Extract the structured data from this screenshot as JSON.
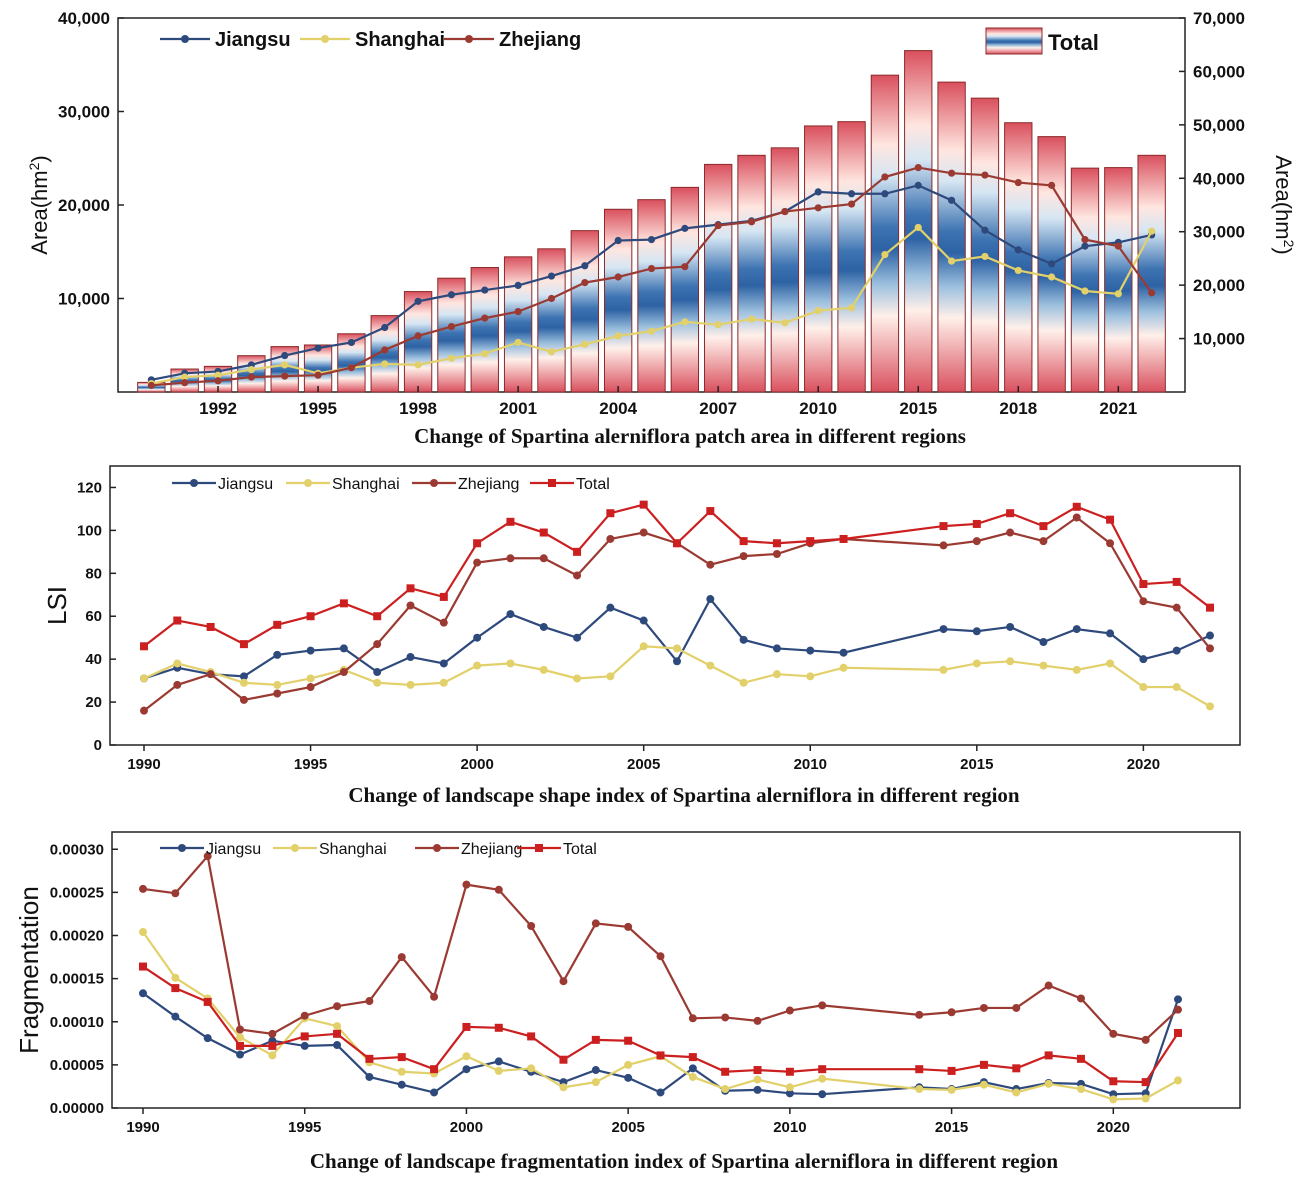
{
  "colors": {
    "jiangsu": "#2e4a7d",
    "shanghai": "#e2d06a",
    "zhejiang": "#9b3a32",
    "total": "#cc1f1f",
    "bar_edge": "#8b2a2a",
    "bar_red": "#d9505e",
    "bar_blue": "#2d62a4"
  },
  "chart_data": [
    {
      "type": "bar+line",
      "title": "Change of  Spartina alerniflora patch area in different regions",
      "ylabel": "Area(hm2)",
      "ylabel2": "Area(hm2)",
      "ylabel_prefix": "Area(hm",
      "ylabel_sup": "2",
      "ylabel_suffix": ")",
      "ylim": [
        0,
        40000
      ],
      "ylim2": [
        0,
        70000
      ],
      "yticks": [
        "10,000",
        "20,000",
        "30,000",
        "40,000"
      ],
      "y2ticks": [
        "10,000",
        "20,000",
        "30,000",
        "40,000",
        "50,000",
        "60,000",
        "70,000"
      ],
      "xtick_labels": [
        "1992",
        "1995",
        "1998",
        "2001",
        "2004",
        "2007",
        "2010",
        "2015",
        "2018",
        "2021"
      ],
      "bar_legend": "Total",
      "categories": [
        "1990",
        "1991",
        "1992",
        "1993",
        "1994",
        "1995",
        "1996",
        "1997",
        "1998",
        "1999",
        "2000",
        "2001",
        "2002",
        "2003",
        "2004",
        "2005",
        "2006",
        "2007",
        "2008",
        "2009",
        "2010",
        "2011",
        "2014",
        "2015",
        "2016",
        "2017",
        "2018",
        "2019",
        "2020",
        "2021",
        "2022"
      ],
      "bars": [
        1800,
        4300,
        4800,
        6800,
        8500,
        8800,
        10900,
        14300,
        18800,
        21300,
        23300,
        25300,
        26800,
        30200,
        34200,
        36000,
        38300,
        42600,
        44300,
        45700,
        49800,
        50600,
        59300,
        63900,
        58000,
        55000,
        50400,
        47800,
        41900,
        42000,
        44300
      ],
      "series": [
        {
          "name": "Jiangsu",
          "values": [
            1300,
            2000,
            2200,
            2900,
            3900,
            4700,
            5300,
            6900,
            9700,
            10400,
            10900,
            11400,
            12400,
            13500,
            16200,
            16300,
            17500,
            17900,
            18300,
            19300,
            21400,
            21200,
            21200,
            22100,
            20500,
            17300,
            15200,
            13700,
            15600,
            16000,
            16800
          ]
        },
        {
          "name": "Shanghai",
          "values": [
            900,
            1600,
            1800,
            2400,
            2900,
            2000,
            2600,
            3000,
            2900,
            3600,
            4100,
            5300,
            4300,
            5100,
            6000,
            6500,
            7500,
            7200,
            7800,
            7400,
            8700,
            9000,
            14700,
            17600,
            14000,
            14500,
            13000,
            12300,
            10800,
            10500,
            17200
          ]
        },
        {
          "name": "Zhejiang",
          "values": [
            700,
            1000,
            1200,
            1600,
            1700,
            1800,
            2600,
            4500,
            6000,
            7000,
            7900,
            8600,
            10000,
            11700,
            12300,
            13200,
            13400,
            17800,
            18200,
            19300,
            19700,
            20100,
            23000,
            24000,
            23400,
            23200,
            22400,
            22100,
            16300,
            15600,
            10600
          ]
        }
      ]
    },
    {
      "type": "line",
      "title": "Change of landscape shape index of Spartina alerniflora in different region",
      "ylabel": "LSI",
      "ylim": [
        0,
        130
      ],
      "yticks": [
        "0",
        "20",
        "40",
        "60",
        "80",
        "100",
        "120"
      ],
      "xtick_labels": [
        "1990",
        "1995",
        "2000",
        "2005",
        "2010",
        "2015",
        "2020"
      ],
      "x": [
        1990,
        1991,
        1992,
        1993,
        1994,
        1995,
        1996,
        1997,
        1998,
        1999,
        2000,
        2001,
        2002,
        2003,
        2004,
        2005,
        2006,
        2007,
        2008,
        2009,
        2010,
        2011,
        2014,
        2015,
        2016,
        2017,
        2018,
        2019,
        2020,
        2021,
        2022
      ],
      "series": [
        {
          "name": "Jiangsu",
          "values": [
            31,
            36,
            33,
            32,
            42,
            44,
            45,
            34,
            41,
            38,
            50,
            61,
            55,
            50,
            64,
            58,
            39,
            68,
            49,
            45,
            44,
            43,
            54,
            53,
            55,
            48,
            54,
            52,
            40,
            44,
            51
          ]
        },
        {
          "name": "Shanghai",
          "values": [
            31,
            38,
            34,
            29,
            28,
            31,
            35,
            29,
            28,
            29,
            37,
            38,
            35,
            31,
            32,
            46,
            45,
            37,
            29,
            33,
            32,
            36,
            35,
            38,
            39,
            37,
            35,
            38,
            27,
            27,
            18
          ]
        },
        {
          "name": "Zhejiang",
          "values": [
            16,
            28,
            33,
            21,
            24,
            27,
            34,
            47,
            65,
            57,
            85,
            87,
            87,
            79,
            96,
            99,
            94,
            84,
            88,
            89,
            94,
            96,
            93,
            95,
            99,
            95,
            106,
            94,
            67,
            64,
            45
          ]
        },
        {
          "name": "Total",
          "values": [
            46,
            58,
            55,
            47,
            56,
            60,
            66,
            60,
            73,
            69,
            94,
            104,
            99,
            90,
            108,
            112,
            94,
            109,
            95,
            94,
            95,
            96,
            102,
            103,
            108,
            102,
            111,
            105,
            75,
            76,
            64
          ]
        }
      ]
    },
    {
      "type": "line",
      "title": "Change of landscape fragmentation index of Spartina alerniflora in different region",
      "ylabel": "Fragmentation",
      "ylim": [
        0,
        0.00032
      ],
      "yticks": [
        "0.00000",
        "0.00005",
        "0.00010",
        "0.00015",
        "0.00020",
        "0.00025",
        "0.00030"
      ],
      "xtick_labels": [
        "1990",
        "1995",
        "2000",
        "2005",
        "2010",
        "2015",
        "2020"
      ],
      "x": [
        1990,
        1991,
        1992,
        1993,
        1994,
        1995,
        1996,
        1997,
        1998,
        1999,
        2000,
        2001,
        2002,
        2003,
        2004,
        2005,
        2006,
        2007,
        2008,
        2009,
        2010,
        2011,
        2014,
        2015,
        2016,
        2017,
        2018,
        2019,
        2020,
        2021,
        2022
      ],
      "series": [
        {
          "name": "Jiangsu",
          "values": [
            0.000133,
            0.000106,
            8.1e-05,
            6.2e-05,
            7.8e-05,
            7.2e-05,
            7.3e-05,
            3.6e-05,
            2.7e-05,
            1.8e-05,
            4.5e-05,
            5.4e-05,
            4.2e-05,
            3e-05,
            4.4e-05,
            3.5e-05,
            1.8e-05,
            4.6e-05,
            2e-05,
            2.1e-05,
            1.7e-05,
            1.6e-05,
            2.4e-05,
            2.2e-05,
            3e-05,
            2.2e-05,
            2.9e-05,
            2.8e-05,
            1.6e-05,
            1.7e-05,
            0.000126
          ]
        },
        {
          "name": "Shanghai",
          "values": [
            0.000204,
            0.000151,
            0.000127,
            8.2e-05,
            6.1e-05,
            0.000104,
            9.5e-05,
            5.3e-05,
            4.2e-05,
            4e-05,
            6e-05,
            4.3e-05,
            4.6e-05,
            2.4e-05,
            3e-05,
            5e-05,
            6e-05,
            3.6e-05,
            2.2e-05,
            3.3e-05,
            2.4e-05,
            3.4e-05,
            2.2e-05,
            2.1e-05,
            2.7e-05,
            1.8e-05,
            2.8e-05,
            2.2e-05,
            1e-05,
            1.1e-05,
            3.2e-05
          ]
        },
        {
          "name": "Zhejiang",
          "values": [
            0.000254,
            0.000249,
            0.000292,
            9.1e-05,
            8.6e-05,
            0.000107,
            0.000118,
            0.000124,
            0.000175,
            0.000129,
            0.000259,
            0.000253,
            0.000211,
            0.000147,
            0.000214,
            0.00021,
            0.000176,
            0.000104,
            0.000105,
            0.000101,
            0.000113,
            0.000119,
            0.000108,
            0.000111,
            0.000116,
            0.000116,
            0.000142,
            0.000127,
            8.6e-05,
            7.9e-05,
            0.000114
          ]
        },
        {
          "name": "Total",
          "values": [
            0.000164,
            0.000139,
            0.000123,
            7.2e-05,
            7.2e-05,
            8.3e-05,
            8.6e-05,
            5.7e-05,
            5.9e-05,
            4.5e-05,
            9.4e-05,
            9.3e-05,
            8.3e-05,
            5.6e-05,
            7.9e-05,
            7.8e-05,
            6.1e-05,
            5.9e-05,
            4.2e-05,
            4.4e-05,
            4.2e-05,
            4.5e-05,
            4.5e-05,
            4.3e-05,
            5e-05,
            4.6e-05,
            6.1e-05,
            5.7e-05,
            3.1e-05,
            3e-05,
            8.7e-05
          ]
        }
      ]
    }
  ]
}
